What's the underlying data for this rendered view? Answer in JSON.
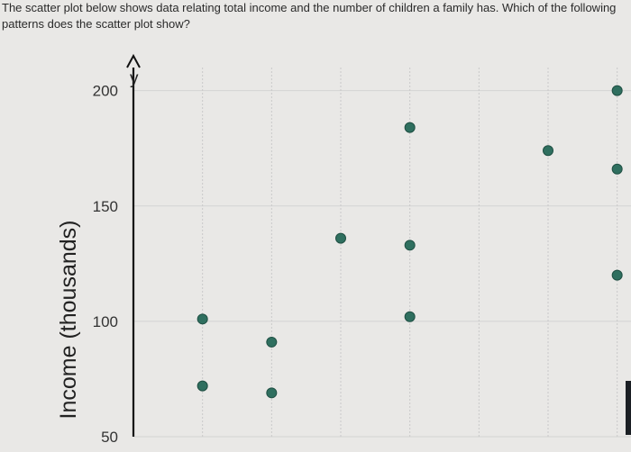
{
  "question": {
    "text": "The scatter plot below shows data relating total income and the number of children a family has. Which of the following patterns does the scatter plot show?"
  },
  "chart_data": {
    "type": "scatter",
    "title": "",
    "xlabel": "",
    "ylabel": "Income (thousands)",
    "y_axis_letter": "y",
    "ylim": [
      50,
      210
    ],
    "yticks": [
      200,
      150,
      100,
      50
    ],
    "x_gridlines": [
      1,
      2,
      3,
      4,
      5,
      6,
      7
    ],
    "xlim": [
      0,
      7.2
    ],
    "grid": true,
    "points": [
      {
        "x": 1,
        "y": 101
      },
      {
        "x": 1,
        "y": 72
      },
      {
        "x": 2,
        "y": 91
      },
      {
        "x": 2,
        "y": 69
      },
      {
        "x": 3,
        "y": 136
      },
      {
        "x": 4,
        "y": 184
      },
      {
        "x": 4,
        "y": 133
      },
      {
        "x": 4,
        "y": 102
      },
      {
        "x": 6,
        "y": 174
      },
      {
        "x": 7,
        "y": 200
      },
      {
        "x": 7,
        "y": 166
      },
      {
        "x": 7,
        "y": 120
      }
    ],
    "point_color": "#2f6f5f"
  }
}
